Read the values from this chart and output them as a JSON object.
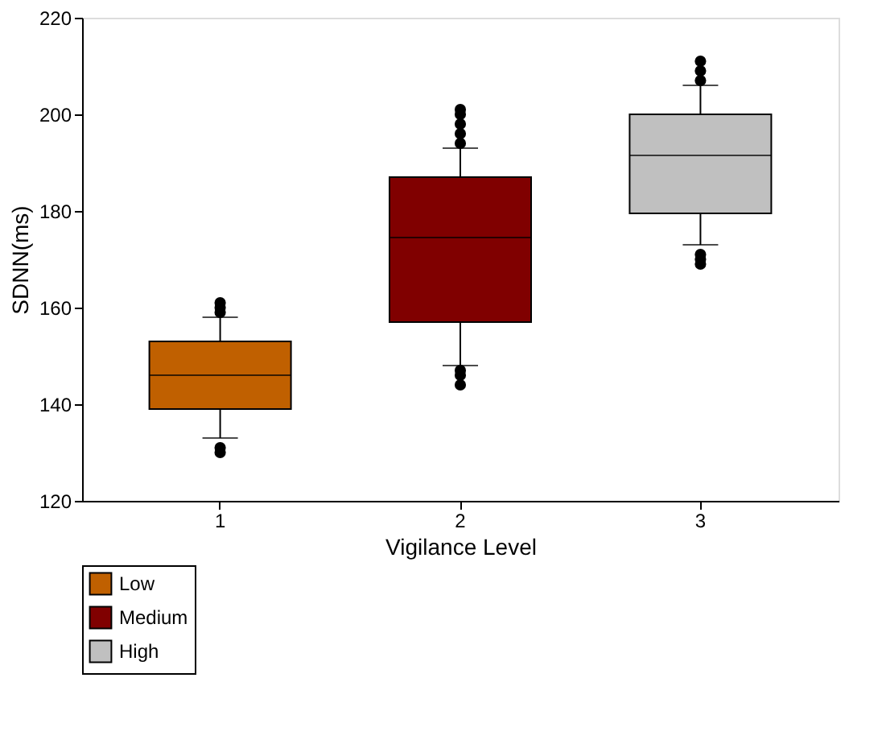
{
  "chart_data": {
    "type": "box",
    "xlabel": "Vigilance Level",
    "ylabel": "SDNN(ms)",
    "categories": [
      "1",
      "2",
      "3"
    ],
    "series": [
      {
        "name": "Low",
        "color": "#c06000",
        "boxes": [
          {
            "low": 133,
            "q1": 139,
            "median": 146,
            "q3": 153,
            "high": 158,
            "outliers": [
              130,
              131,
              159,
              160,
              161
            ]
          },
          null,
          null
        ]
      },
      {
        "name": "Medium",
        "color": "#800000",
        "boxes": [
          null,
          {
            "low": 148,
            "q1": 157,
            "median": 174.5,
            "q3": 187,
            "high": 193,
            "outliers": [
              144,
              146,
              147,
              194,
              196,
              198,
              200,
              201
            ]
          },
          null
        ]
      },
      {
        "name": "High",
        "color": "#c0c0c0",
        "boxes": [
          null,
          null,
          {
            "low": 173,
            "q1": 179.5,
            "median": 191.5,
            "q3": 200,
            "high": 206,
            "outliers": [
              169,
              170,
              171,
              207,
              209,
              211
            ]
          }
        ]
      }
    ],
    "ylim": [
      120,
      220
    ],
    "yticks": [
      120,
      140,
      160,
      180,
      200,
      220
    ],
    "grid": false,
    "legend": "bottom left"
  }
}
